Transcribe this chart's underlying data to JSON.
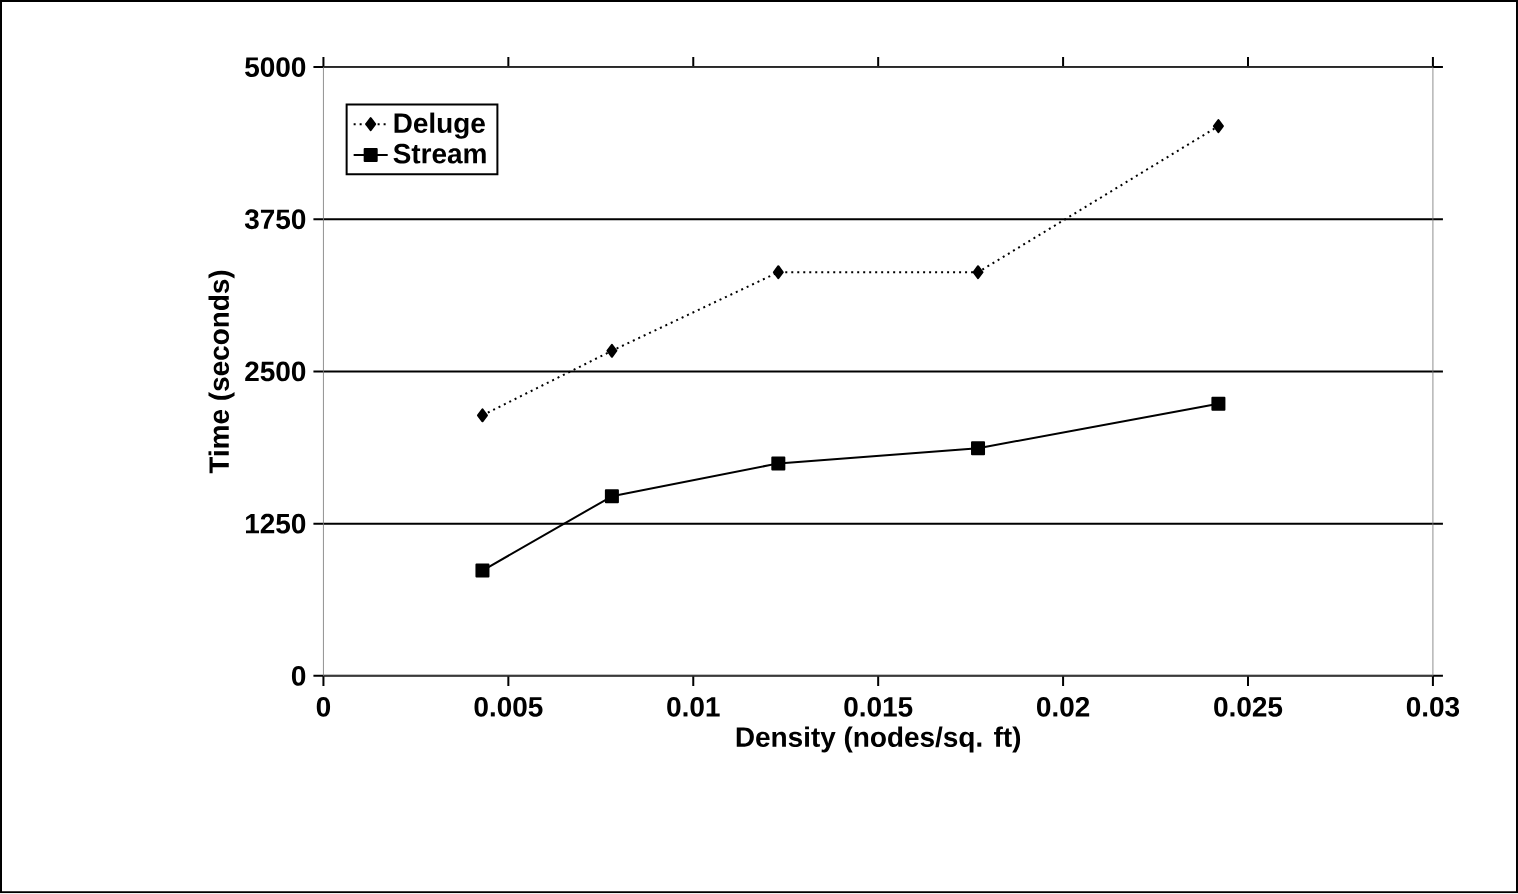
{
  "chart_data": {
    "type": "line",
    "xlabel": "Density (nodes/sq. ft)",
    "ylabel": "Time (seconds)",
    "x": [
      0.0043,
      0.0078,
      0.0123,
      0.0177,
      0.0242
    ],
    "series": [
      {
        "name": "Deluge",
        "color": "#000000",
        "marker": "diamond",
        "line_style": "dotted",
        "values": [
          2140,
          2670,
          3315,
          3315,
          4515
        ]
      },
      {
        "name": "Stream",
        "color": "#000000",
        "marker": "square",
        "line_style": "solid",
        "values": [
          865,
          1475,
          1745,
          1870,
          2235
        ]
      }
    ],
    "xlim": [
      0,
      0.03
    ],
    "xticks": [
      0,
      0.005,
      0.01,
      0.015,
      0.02,
      0.025,
      0.03
    ],
    "ylim": [
      0,
      5000
    ],
    "yticks": [
      0,
      1250,
      2500,
      3750,
      5000
    ],
    "grid": "y",
    "legend": "top left"
  }
}
